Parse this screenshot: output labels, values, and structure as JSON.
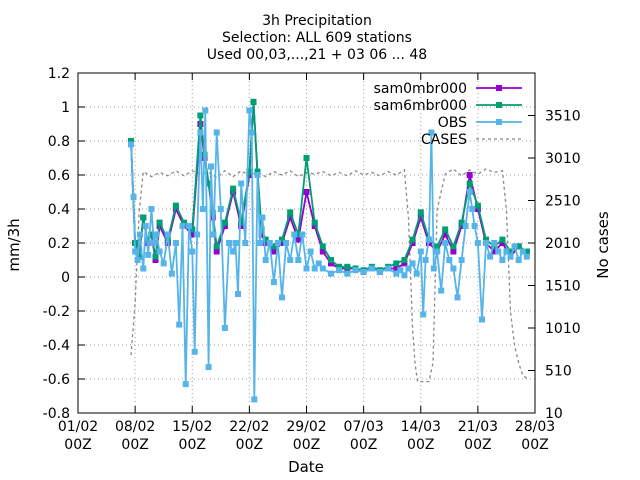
{
  "chart_data": {
    "type": "line",
    "title": "3h Precipitation",
    "subtitle": [
      "Selection: ALL    609 stations",
      "Used 00,03,...,21 + 03 06 ... 48"
    ],
    "xlabel": "Date",
    "ylabel": "mm/3h",
    "y2label": "No cases",
    "ylim": [
      -0.8,
      1.2
    ],
    "y_ticks": [
      "-0.8",
      "-0.6",
      "-0.4",
      "-0.2",
      "0",
      "0.2",
      "0.4",
      "0.6",
      "0.8",
      "1",
      "1.2"
    ],
    "y2lim": [
      10,
      4010
    ],
    "y2_ticks": [
      "10",
      "510",
      "1010",
      "1510",
      "2010",
      "2510",
      "3010",
      "3510"
    ],
    "x_ticks": [
      [
        "01/02",
        "00Z"
      ],
      [
        "08/02",
        "00Z"
      ],
      [
        "15/02",
        "00Z"
      ],
      [
        "22/02",
        "00Z"
      ],
      [
        "29/02",
        "00Z"
      ],
      [
        "07/03",
        "00Z"
      ],
      [
        "14/03",
        "00Z"
      ],
      [
        "21/03",
        "00Z"
      ],
      [
        "28/03",
        "00Z"
      ]
    ],
    "grid": true,
    "legend_position": "top-right",
    "series": [
      {
        "name": "sam0mbr000",
        "color": "#9400d3",
        "marker": "square",
        "x": [
          6.5,
          7,
          7.5,
          8,
          8.5,
          9,
          9.5,
          10,
          11,
          12,
          13,
          14,
          15,
          15.5,
          16,
          16.5,
          17,
          18,
          19,
          20,
          21,
          21.5,
          22,
          22.5,
          23,
          24,
          25,
          26,
          27,
          28,
          29,
          30,
          31,
          32,
          33,
          34,
          35,
          36,
          37,
          38,
          39,
          40,
          41,
          42,
          43,
          44,
          45,
          46,
          47,
          48,
          49,
          50,
          51,
          52,
          53,
          54,
          55
        ],
        "y": [
          0.8,
          0.2,
          0.12,
          0.35,
          0.2,
          0.25,
          0.1,
          0.3,
          0.2,
          0.4,
          0.3,
          0.25,
          0.9,
          0.7,
          0.55,
          0.35,
          0.15,
          0.3,
          0.5,
          0.3,
          0.6,
          1.03,
          0.6,
          0.25,
          0.2,
          0.15,
          0.2,
          0.35,
          0.22,
          0.5,
          0.3,
          0.15,
          0.08,
          0.05,
          0.05,
          0.05,
          0.03,
          0.05,
          0.03,
          0.05,
          0.05,
          0.08,
          0.2,
          0.35,
          0.2,
          0.15,
          0.25,
          0.15,
          0.3,
          0.6,
          0.4,
          0.2,
          0.15,
          0.2,
          0.12,
          0.18,
          0.15
        ]
      },
      {
        "name": "sam6mbr000",
        "color": "#009e73",
        "marker": "square",
        "x": [
          6.5,
          7,
          7.5,
          8,
          8.5,
          9,
          9.5,
          10,
          11,
          12,
          13,
          14,
          15,
          15.5,
          16,
          16.5,
          17,
          18,
          19,
          20,
          21,
          21.5,
          22,
          22.5,
          23,
          24,
          25,
          26,
          27,
          28,
          29,
          30,
          31,
          32,
          33,
          34,
          35,
          36,
          37,
          38,
          39,
          40,
          41,
          42,
          43,
          44,
          45,
          46,
          47,
          48,
          49,
          50,
          51,
          52,
          53,
          54,
          55
        ],
        "y": [
          0.8,
          0.2,
          0.12,
          0.35,
          0.22,
          0.25,
          0.12,
          0.32,
          0.22,
          0.42,
          0.32,
          0.28,
          0.95,
          0.72,
          0.55,
          0.38,
          0.18,
          0.32,
          0.52,
          0.32,
          0.62,
          1.03,
          0.62,
          0.28,
          0.22,
          0.18,
          0.22,
          0.38,
          0.25,
          0.7,
          0.32,
          0.18,
          0.1,
          0.06,
          0.06,
          0.05,
          0.04,
          0.06,
          0.04,
          0.06,
          0.08,
          0.1,
          0.22,
          0.38,
          0.22,
          0.18,
          0.28,
          0.18,
          0.32,
          0.55,
          0.42,
          0.22,
          0.18,
          0.22,
          0.15,
          0.18,
          0.15
        ]
      },
      {
        "name": "OBS",
        "color": "#56b4e9",
        "marker": "square",
        "x": [
          6.5,
          6.8,
          7,
          7.3,
          7.6,
          8,
          8.3,
          8.6,
          9,
          9.3,
          9.6,
          10,
          10.5,
          11,
          11.5,
          12,
          12.4,
          12.8,
          13.2,
          13.6,
          14,
          14.3,
          14.6,
          15,
          15.3,
          15.6,
          16,
          16.3,
          16.6,
          17,
          17.5,
          18,
          18.5,
          19,
          19.3,
          19.6,
          20,
          20.5,
          21,
          21.3,
          21.6,
          22,
          22.3,
          22.6,
          23,
          23.5,
          24,
          24.5,
          25,
          25.5,
          26,
          26.5,
          27,
          27.5,
          28,
          28.5,
          29,
          29.5,
          30,
          31,
          32,
          33,
          34,
          35,
          36,
          37,
          38,
          39,
          39.5,
          40,
          40.5,
          41,
          41.5,
          42,
          42.3,
          42.6,
          43,
          43.3,
          43.6,
          44,
          44.5,
          45,
          45.5,
          46,
          46.5,
          47,
          47.5,
          48,
          48.3,
          48.6,
          49,
          49.5,
          50,
          50.5,
          51,
          51.5,
          52,
          52.5,
          53,
          53.5,
          54,
          54.5,
          55
        ],
        "y": [
          0.78,
          0.47,
          0.15,
          0.1,
          0.25,
          0.05,
          0.3,
          0.13,
          0.4,
          0.2,
          0.25,
          0.15,
          0.08,
          0.25,
          0.02,
          0.2,
          -0.28,
          0.3,
          -0.63,
          0.3,
          0.15,
          -0.44,
          0.25,
          0.85,
          0.4,
          0.98,
          -0.53,
          0.65,
          0.25,
          0.85,
          0.4,
          -0.3,
          0.2,
          0.15,
          0.2,
          -0.1,
          0.55,
          0.2,
          0.98,
          0.85,
          -0.72,
          0.6,
          0.2,
          0.35,
          0.1,
          0.2,
          -0.03,
          0.2,
          -0.12,
          0.2,
          0.1,
          0.25,
          0.1,
          0.25,
          0.05,
          0.15,
          0.05,
          0.08,
          0.05,
          0.02,
          0.04,
          0.02,
          0.04,
          0.03,
          0.05,
          0.03,
          0.05,
          0.02,
          0.04,
          0.01,
          0.05,
          0.08,
          0.02,
          0.15,
          -0.22,
          0.1,
          0.22,
          0.85,
          0.05,
          0.15,
          -0.08,
          0.2,
          0.1,
          0.05,
          -0.12,
          0.1,
          0.3,
          0.5,
          0.4,
          0.3,
          0.2,
          -0.25,
          0.2,
          0.12,
          0.2,
          0.15,
          0.1,
          0.15,
          0.12,
          0.18,
          0.1,
          0.15,
          0.12
        ]
      },
      {
        "name": "CASES",
        "color": "#888888",
        "marker": "none",
        "axis": "y2",
        "x": [
          6.5,
          6.8,
          7,
          7.5,
          8,
          9,
          10,
          11,
          12,
          13,
          14,
          15,
          16,
          17,
          18,
          19,
          20,
          21,
          22,
          23,
          24,
          25,
          26,
          27,
          28,
          29,
          30,
          31,
          32,
          33,
          34,
          35,
          36,
          37,
          38,
          39,
          40,
          40.5,
          41,
          41.3,
          41.6,
          42,
          42.5,
          43,
          43.5,
          44,
          45,
          46,
          47,
          48,
          49,
          50,
          51,
          52,
          52.5,
          53,
          53.5,
          54,
          54.5,
          55
        ],
        "y": [
          690,
          1060,
          1300,
          2380,
          2850,
          2790,
          2840,
          2800,
          2860,
          2800,
          2860,
          2820,
          2840,
          2780,
          2860,
          2790,
          2860,
          2800,
          2850,
          2790,
          2850,
          2810,
          2860,
          2790,
          2840,
          2820,
          2850,
          2800,
          2840,
          2800,
          2860,
          2810,
          2840,
          2800,
          2850,
          2810,
          2870,
          2300,
          1000,
          600,
          380,
          380,
          380,
          380,
          600,
          2400,
          2820,
          2880,
          2800,
          2870,
          2820,
          2880,
          2840,
          2860,
          2400,
          1200,
          800,
          600,
          450,
          420
        ]
      }
    ]
  }
}
